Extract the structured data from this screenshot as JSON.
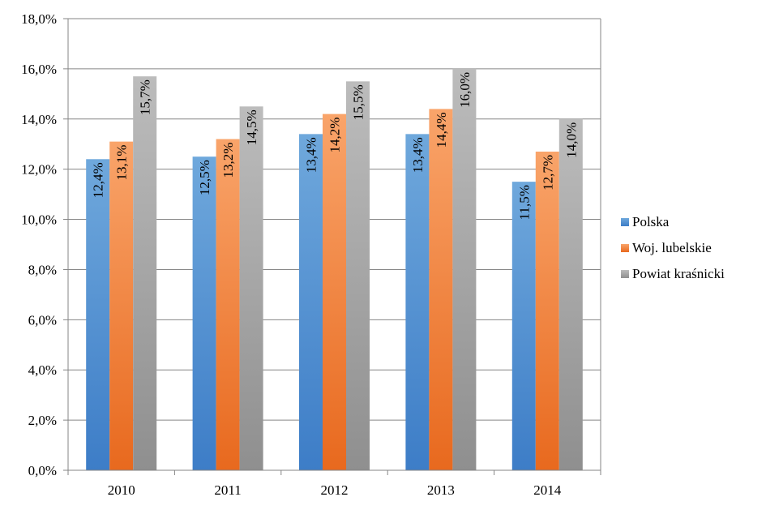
{
  "chart_data": {
    "type": "bar",
    "title": "",
    "xlabel": "",
    "ylabel": "",
    "categories": [
      "2010",
      "2011",
      "2012",
      "2013",
      "2014"
    ],
    "series": [
      {
        "name": "Polska",
        "values": [
          12.4,
          12.5,
          13.4,
          13.4,
          11.5
        ],
        "labels": [
          "12,4%",
          "12,5%",
          "13,4%",
          "13,4%",
          "11,5%"
        ],
        "color_top": "#6fa8dc",
        "color_bottom": "#3d7dc7"
      },
      {
        "name": "Woj. lubelskie",
        "values": [
          13.1,
          13.2,
          14.2,
          14.4,
          12.7
        ],
        "labels": [
          "13,1%",
          "13,2%",
          "14,2%",
          "14,4%",
          "12,7%"
        ],
        "color_top": "#f9a46a",
        "color_bottom": "#e8691e"
      },
      {
        "name": "Powiat kraśnicki",
        "values": [
          15.7,
          14.5,
          15.5,
          16.0,
          14.0
        ],
        "labels": [
          "15,7%",
          "14,5%",
          "15,5%",
          "16,0%",
          "14,0%"
        ],
        "color_top": "#bcbcbc",
        "color_bottom": "#8f8f8f"
      }
    ],
    "ylim": [
      0,
      18
    ],
    "yticks": [
      0,
      2,
      4,
      6,
      8,
      10,
      12,
      14,
      16,
      18
    ],
    "ytick_labels": [
      "0,0%",
      "2,0%",
      "4,0%",
      "6,0%",
      "8,0%",
      "10,0%",
      "12,0%",
      "14,0%",
      "16,0%",
      "18,0%"
    ],
    "grid": true,
    "legend_position": "right"
  }
}
